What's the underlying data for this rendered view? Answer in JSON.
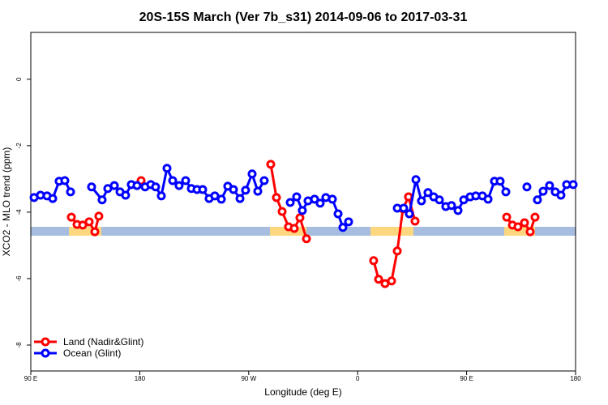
{
  "chart_data": {
    "type": "line",
    "title": "20S-15S March (Ver 7b_s31)   2014-09-06 to 2017-03-31",
    "xlabel": "Longitude (deg E)",
    "ylabel": "XCO2 - MLO trend (ppm)",
    "xlim": [
      90,
      540
    ],
    "xticks": [
      {
        "value": 90,
        "label": "90 E"
      },
      180,
      {
        "value": 270,
        "label": "90 W"
      },
      {
        "value": 360,
        "label": "0"
      },
      {
        "value": 450,
        "label": "90 E"
      },
      {
        "value": 540,
        "label": "180"
      }
    ],
    "ylim": [
      -8.78,
      1.41
    ],
    "yticks": [
      0,
      -2,
      -4,
      -6,
      -8
    ],
    "legend": "bottom-left",
    "series": [
      {
        "name": "Land (Nadir&Glint)",
        "color": "#ff0000",
        "x": [
          123.5,
          128.2,
          132.9,
          138.2,
          142.9,
          146.2,
          null,
          181.1,
          null,
          288.2,
          292.9,
          297.6,
          302.9,
          307.6,
          312.3,
          317.7,
          null,
          373.2,
          377.3,
          382.6,
          388.0,
          392.7,
          397.4,
          402.0,
          407.4,
          null,
          483.1,
          487.8,
          492.4,
          497.8,
          502.5,
          506.5
        ],
        "values": [
          -4.15,
          -4.37,
          -4.39,
          -4.29,
          -4.59,
          -4.12,
          null,
          -3.05,
          null,
          -2.56,
          -3.56,
          -3.98,
          -4.44,
          -4.49,
          -4.17,
          -4.8,
          null,
          -5.46,
          -6.02,
          -6.15,
          -6.07,
          -5.17,
          -3.9,
          -3.54,
          -4.27,
          null,
          -4.15,
          -4.39,
          -4.44,
          -4.32,
          -4.59,
          -4.15
        ]
      },
      {
        "name": "Ocean (Glint)",
        "color": "#0000ff",
        "x": [
          92.7,
          98.0,
          103.4,
          108.1,
          113.4,
          118.1,
          122.8,
          null,
          140.2,
          148.9,
          153.6,
          159.0,
          163.7,
          168.3,
          173.0,
          177.7,
          184.4,
          189.1,
          193.1,
          197.8,
          202.5,
          207.2,
          212.5,
          217.9,
          222.6,
          227.3,
          232.0,
          237.3,
          242.0,
          247.4,
          252.7,
          257.4,
          262.8,
          267.4,
          272.8,
          277.5,
          282.8,
          null,
          304.3,
          309.6,
          314.3,
          319.0,
          324.4,
          329.0,
          333.7,
          339.1,
          343.8,
          347.8,
          352.5,
          null,
          392.7,
          398.0,
          402.7,
          408.1,
          412.7,
          418.1,
          422.8,
          427.5,
          432.8,
          437.5,
          442.9,
          447.6,
          452.9,
          457.6,
          463.0,
          467.7,
          473.0,
          477.7,
          482.4,
          null,
          499.8,
          null,
          508.5,
          513.2,
          518.5,
          523.2,
          527.9,
          532.6,
          538.0
        ],
        "values": [
          -3.56,
          -3.49,
          -3.51,
          -3.59,
          -3.07,
          -3.05,
          -3.39,
          null,
          -3.24,
          -3.63,
          -3.29,
          -3.2,
          -3.39,
          -3.49,
          -3.17,
          -3.2,
          -3.24,
          -3.17,
          -3.24,
          -3.51,
          -2.68,
          -3.05,
          -3.2,
          -3.05,
          -3.29,
          -3.32,
          -3.32,
          -3.59,
          -3.51,
          -3.61,
          -3.22,
          -3.32,
          -3.59,
          -3.34,
          -2.85,
          -3.37,
          -3.05,
          null,
          -3.71,
          -3.54,
          -3.95,
          -3.66,
          -3.61,
          -3.73,
          -3.56,
          -3.61,
          -4.05,
          -4.46,
          -4.29,
          null,
          -3.88,
          -3.88,
          -4.05,
          -3.02,
          -3.66,
          -3.41,
          -3.54,
          -3.63,
          -3.83,
          -3.8,
          -3.95,
          -3.63,
          -3.54,
          -3.51,
          -3.51,
          -3.61,
          -3.07,
          -3.07,
          -3.39,
          null,
          -3.24,
          null,
          -3.63,
          -3.37,
          -3.2,
          -3.39,
          -3.49,
          -3.17,
          -3.17
        ]
      }
    ]
  }
}
